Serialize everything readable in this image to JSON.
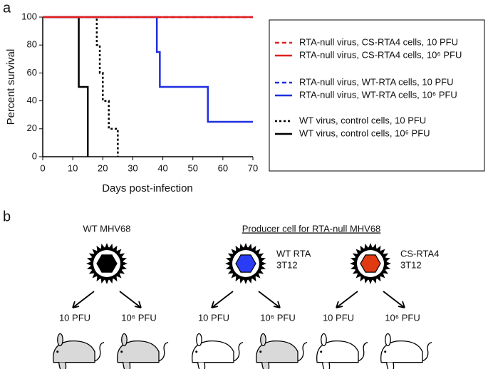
{
  "chart_data": {
    "type": "step",
    "panel_label": "a",
    "x_label": "Days post-infection",
    "y_label": "Percent survival",
    "xlim": [
      0,
      70
    ],
    "ylim": [
      0,
      100
    ],
    "xticks": [
      0,
      10,
      20,
      30,
      40,
      50,
      60,
      70
    ],
    "yticks": [
      0,
      20,
      40,
      60,
      80,
      100
    ],
    "series": [
      {
        "name": "RTA-null virus, CS-RTA4 cells, 10 PFU",
        "color": "#e02020",
        "dash": "dashed",
        "x": [
          0,
          70
        ],
        "values": [
          100,
          100
        ]
      },
      {
        "name": "RTA-null virus, CS-RTA4 cells, 10⁶ PFU",
        "color": "#e02020",
        "dash": "solid",
        "x": [
          0,
          70
        ],
        "values": [
          100,
          100
        ]
      },
      {
        "name": "RTA-null virus, WT-RTA cells, 10 PFU",
        "color": "#1f2fe0",
        "dash": "dashed",
        "x": [
          0,
          70
        ],
        "values": [
          100,
          100
        ]
      },
      {
        "name": "RTA-null virus, WT-RTA cells, 10⁶ PFU",
        "color": "#1f2fe0",
        "dash": "solid",
        "x": [
          0,
          38,
          39,
          55,
          70
        ],
        "values": [
          100,
          75,
          50,
          25,
          25
        ]
      },
      {
        "name": "WT virus, control cells, 10 PFU",
        "color": "#000000",
        "dash": "dotted",
        "x": [
          0,
          18,
          19,
          20,
          22,
          25
        ],
        "values": [
          100,
          80,
          60,
          40,
          20,
          0
        ]
      },
      {
        "name": "WT virus, control cells, 10⁶ PFU",
        "color": "#000000",
        "dash": "solid",
        "x": [
          0,
          12,
          15
        ],
        "values": [
          100,
          50,
          0
        ]
      }
    ]
  },
  "panel_b": {
    "label": "b",
    "wt_title": "WT MHV68",
    "producer_title": "Producer cell for RTA-null MHV68",
    "cells": [
      {
        "name": "WT RTA",
        "sub": "3T12"
      },
      {
        "name": "CS-RTA4",
        "sub": "3T12"
      }
    ],
    "doses": [
      "10 PFU",
      "10⁶ PFU",
      "10 PFU",
      "10⁶ PFU",
      "10 PFU",
      "10⁶ PFU"
    ]
  }
}
